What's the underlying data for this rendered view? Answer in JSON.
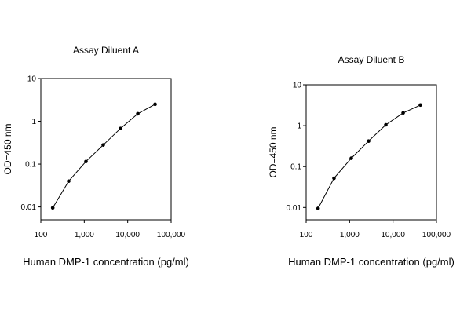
{
  "chart_data": [
    {
      "type": "line",
      "title": "Assay Diluent A",
      "xlabel": "Human DMP-1 concentration (pg/ml)",
      "ylabel": "OD=450 nm",
      "xscale": "log",
      "yscale": "log",
      "xlim": [
        100,
        100000
      ],
      "ylim": [
        0.005,
        10
      ],
      "xticks": [
        100,
        1000,
        10000,
        100000
      ],
      "xtick_labels": [
        "100",
        "1,000",
        "10,000",
        "100,000"
      ],
      "yticks": [
        0.01,
        0.1,
        1,
        10
      ],
      "ytick_labels": [
        "0.01",
        "0.1",
        "1",
        "10"
      ],
      "grid": false,
      "series": [
        {
          "name": "Assay Diluent A",
          "x": [
            188,
            438,
            1094,
            2734,
            6836,
            17090,
            42725
          ],
          "y": [
            0.0095,
            0.04,
            0.115,
            0.28,
            0.68,
            1.5,
            2.5
          ]
        }
      ]
    },
    {
      "type": "line",
      "title": "Assay Diluent B",
      "xlabel": "Human DMP-1 concentration (pg/ml)",
      "ylabel": "OD=450 nm",
      "xscale": "log",
      "yscale": "log",
      "xlim": [
        100,
        100000
      ],
      "ylim": [
        0.005,
        10
      ],
      "xticks": [
        100,
        1000,
        10000,
        100000
      ],
      "xtick_labels": [
        "100",
        "1,000",
        "10,000",
        "100,000"
      ],
      "yticks": [
        0.01,
        0.1,
        1,
        10
      ],
      "ytick_labels": [
        "0.01",
        "0.1",
        "1",
        "10"
      ],
      "grid": false,
      "series": [
        {
          "name": "Assay Diluent B",
          "x": [
            188,
            438,
            1094,
            2734,
            6836,
            17090,
            42725
          ],
          "y": [
            0.0095,
            0.052,
            0.16,
            0.42,
            1.05,
            2.05,
            3.2
          ]
        }
      ]
    }
  ]
}
